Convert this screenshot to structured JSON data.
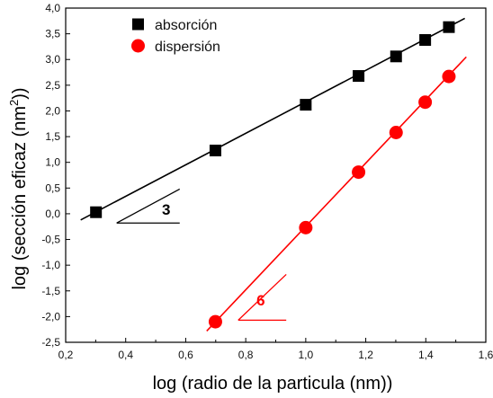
{
  "chart_data": {
    "type": "scatter",
    "title": "",
    "xlabel": "log (radio de la particula (nm))",
    "ylabel": "log (sección eficaz (nm²))",
    "ylabel_base": "log (sección eficaz (nm",
    "ylabel_sup": "2",
    "ylabel_tail": "))",
    "xlim": [
      0.2,
      1.6
    ],
    "ylim": [
      -2.5,
      4.0
    ],
    "x_ticks": [
      0.2,
      0.4,
      0.6,
      0.8,
      1.0,
      1.2,
      1.4,
      1.6
    ],
    "x_tick_labels": [
      "0,2",
      "0,4",
      "0,6",
      "0,8",
      "1,0",
      "1,2",
      "1,4",
      "1,6"
    ],
    "y_ticks": [
      -2.5,
      -2.0,
      -1.5,
      -1.0,
      -0.5,
      0.0,
      0.5,
      1.0,
      1.5,
      2.0,
      2.5,
      3.0,
      3.5,
      4.0
    ],
    "y_tick_labels": [
      "-2,5",
      "-2,0",
      "-1,5",
      "-1,0",
      "-0,5",
      "0,0",
      "0,5",
      "1,0",
      "1,5",
      "2,0",
      "2,5",
      "3,0",
      "3,5",
      "4,0"
    ],
    "grid": false,
    "legend_position": "top-left",
    "series": [
      {
        "name": "absorción",
        "marker": "square",
        "color": "#000000",
        "x": [
          0.301,
          0.699,
          1.0,
          1.176,
          1.301,
          1.398,
          1.477
        ],
        "y": [
          0.03,
          1.23,
          2.12,
          2.68,
          3.06,
          3.38,
          3.63
        ],
        "fit": {
          "x": [
            0.25,
            1.53
          ],
          "y": [
            -0.12,
            3.8
          ]
        }
      },
      {
        "name": "dispersión",
        "marker": "circle",
        "color": "#ff0000",
        "x": [
          0.699,
          1.0,
          1.176,
          1.301,
          1.398,
          1.477
        ],
        "y": [
          -2.1,
          -0.27,
          0.81,
          1.58,
          2.17,
          2.67
        ],
        "fit": {
          "x": [
            0.67,
            1.535
          ],
          "y": [
            -2.28,
            3.05
          ]
        }
      }
    ],
    "annotations": [
      {
        "label": "3",
        "color": "#000000",
        "triangle": {
          "start": [
            0.37,
            -0.18
          ],
          "end_x": 0.58,
          "top_y": 0.48
        },
        "text_at": [
          0.535,
          -0.02
        ]
      },
      {
        "label": "6",
        "color": "#ff0000",
        "triangle": {
          "start": [
            0.775,
            -2.07
          ],
          "end_x": 0.935,
          "top_y": -1.18
        },
        "text_at": [
          0.85,
          -1.78
        ]
      }
    ]
  }
}
